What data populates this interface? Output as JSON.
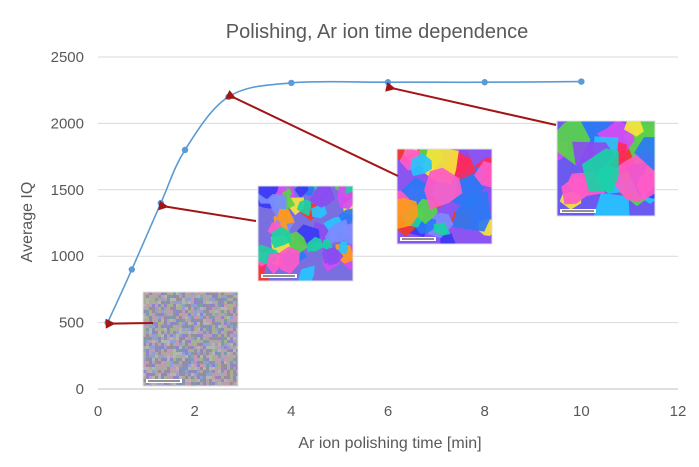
{
  "chart_data": {
    "type": "line",
    "title": "Polishing, Ar ion time dependence",
    "xlabel": "Ar ion polishing time [min]",
    "ylabel": "Average IQ",
    "xlim": [
      0,
      12
    ],
    "ylim": [
      0,
      2500
    ],
    "xticks": [
      0,
      2,
      4,
      6,
      8,
      10,
      12
    ],
    "yticks": [
      0,
      500,
      1000,
      1500,
      2000,
      2500
    ],
    "grid": "horizontal",
    "legend": "none",
    "series": [
      {
        "name": "Average IQ",
        "color": "#5b9bd5",
        "x": [
          0.2,
          0.7,
          1.3,
          1.8,
          2.7,
          4,
          6,
          8,
          10
        ],
        "y": [
          500,
          900,
          1400,
          1800,
          2200,
          2305,
          2310,
          2310,
          2315
        ]
      }
    ],
    "annotations": [
      {
        "kind": "orientation-map-image",
        "points_to": {
          "x": 0.2,
          "y": 500
        },
        "pattern": "noise"
      },
      {
        "kind": "orientation-map-image",
        "points_to": {
          "x": 1.3,
          "y": 1380
        },
        "pattern": "fine-grains"
      },
      {
        "kind": "orientation-map-image",
        "points_to": {
          "x": 2.7,
          "y": 2200
        },
        "pattern": "medium-grains"
      },
      {
        "kind": "orientation-map-image",
        "points_to": {
          "x": 6,
          "y": 2270
        },
        "pattern": "coarse-grains"
      }
    ],
    "arrow_color": "#a31515"
  }
}
